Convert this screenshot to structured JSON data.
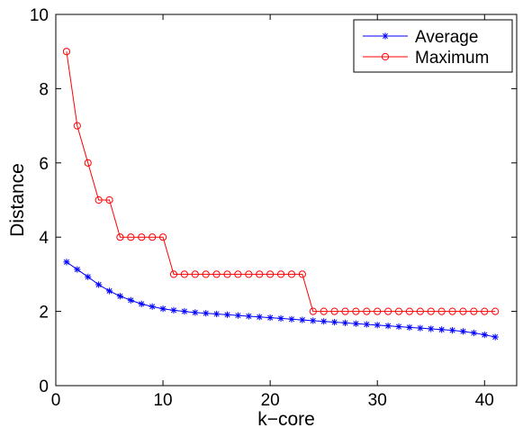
{
  "chart_data": {
    "type": "line",
    "title": "",
    "xlabel": "k−core",
    "ylabel": "Distance",
    "xlim": [
      0,
      43
    ],
    "ylim": [
      0,
      10
    ],
    "xticks": [
      0,
      10,
      20,
      30,
      40
    ],
    "yticks": [
      0,
      2,
      4,
      6,
      8,
      10
    ],
    "grid": false,
    "legend_position": "top-right",
    "x": [
      1,
      2,
      3,
      4,
      5,
      6,
      7,
      8,
      9,
      10,
      11,
      12,
      13,
      14,
      15,
      16,
      17,
      18,
      19,
      20,
      21,
      22,
      23,
      24,
      25,
      26,
      27,
      28,
      29,
      30,
      31,
      32,
      33,
      34,
      35,
      36,
      37,
      38,
      39,
      40,
      41
    ],
    "series": [
      {
        "name": "Average",
        "color": "#0000ff",
        "marker": "asterisk",
        "values": [
          3.33,
          3.13,
          2.93,
          2.72,
          2.55,
          2.41,
          2.3,
          2.2,
          2.13,
          2.07,
          2.03,
          2.0,
          1.97,
          1.95,
          1.93,
          1.91,
          1.89,
          1.87,
          1.85,
          1.83,
          1.81,
          1.79,
          1.77,
          1.75,
          1.73,
          1.71,
          1.69,
          1.67,
          1.65,
          1.63,
          1.61,
          1.59,
          1.57,
          1.55,
          1.53,
          1.51,
          1.49,
          1.46,
          1.42,
          1.37,
          1.31
        ]
      },
      {
        "name": "Maximum",
        "color": "#ff0000",
        "marker": "circle",
        "values": [
          9,
          7,
          6,
          5,
          5,
          4,
          4,
          4,
          4,
          4,
          3,
          3,
          3,
          3,
          3,
          3,
          3,
          3,
          3,
          3,
          3,
          3,
          3,
          2,
          2,
          2,
          2,
          2,
          2,
          2,
          2,
          2,
          2,
          2,
          2,
          2,
          2,
          2,
          2,
          2,
          2
        ]
      }
    ]
  }
}
